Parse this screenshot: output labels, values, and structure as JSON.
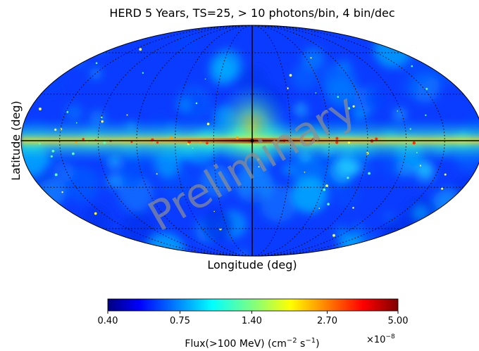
{
  "chart_data": {
    "type": "heatmap",
    "projection": "mollweide",
    "title": "HERD 5 Years, TS=25, > 10 photons/bin, 4 bin/dec",
    "xlabel": "Longitude (deg)",
    "ylabel": "Latitude (deg)",
    "watermark": "Preliminary",
    "graticule": {
      "meridian_step_deg": 30,
      "parallel_step_deg": 30,
      "style": "dotted"
    },
    "colorbar": {
      "colormap": "jet",
      "scale": "log",
      "range": [
        0.4,
        5.0
      ],
      "ticks": [
        "0.40",
        "0.75",
        "1.40",
        "2.70",
        "5.00"
      ],
      "multiplier": "×10",
      "multiplier_exp": "−8",
      "label_main": "Flux(>100 MeV) (cm",
      "label_exp1": "−2",
      "label_mid": " s",
      "label_exp2": "−1",
      "label_end": ")"
    }
  }
}
